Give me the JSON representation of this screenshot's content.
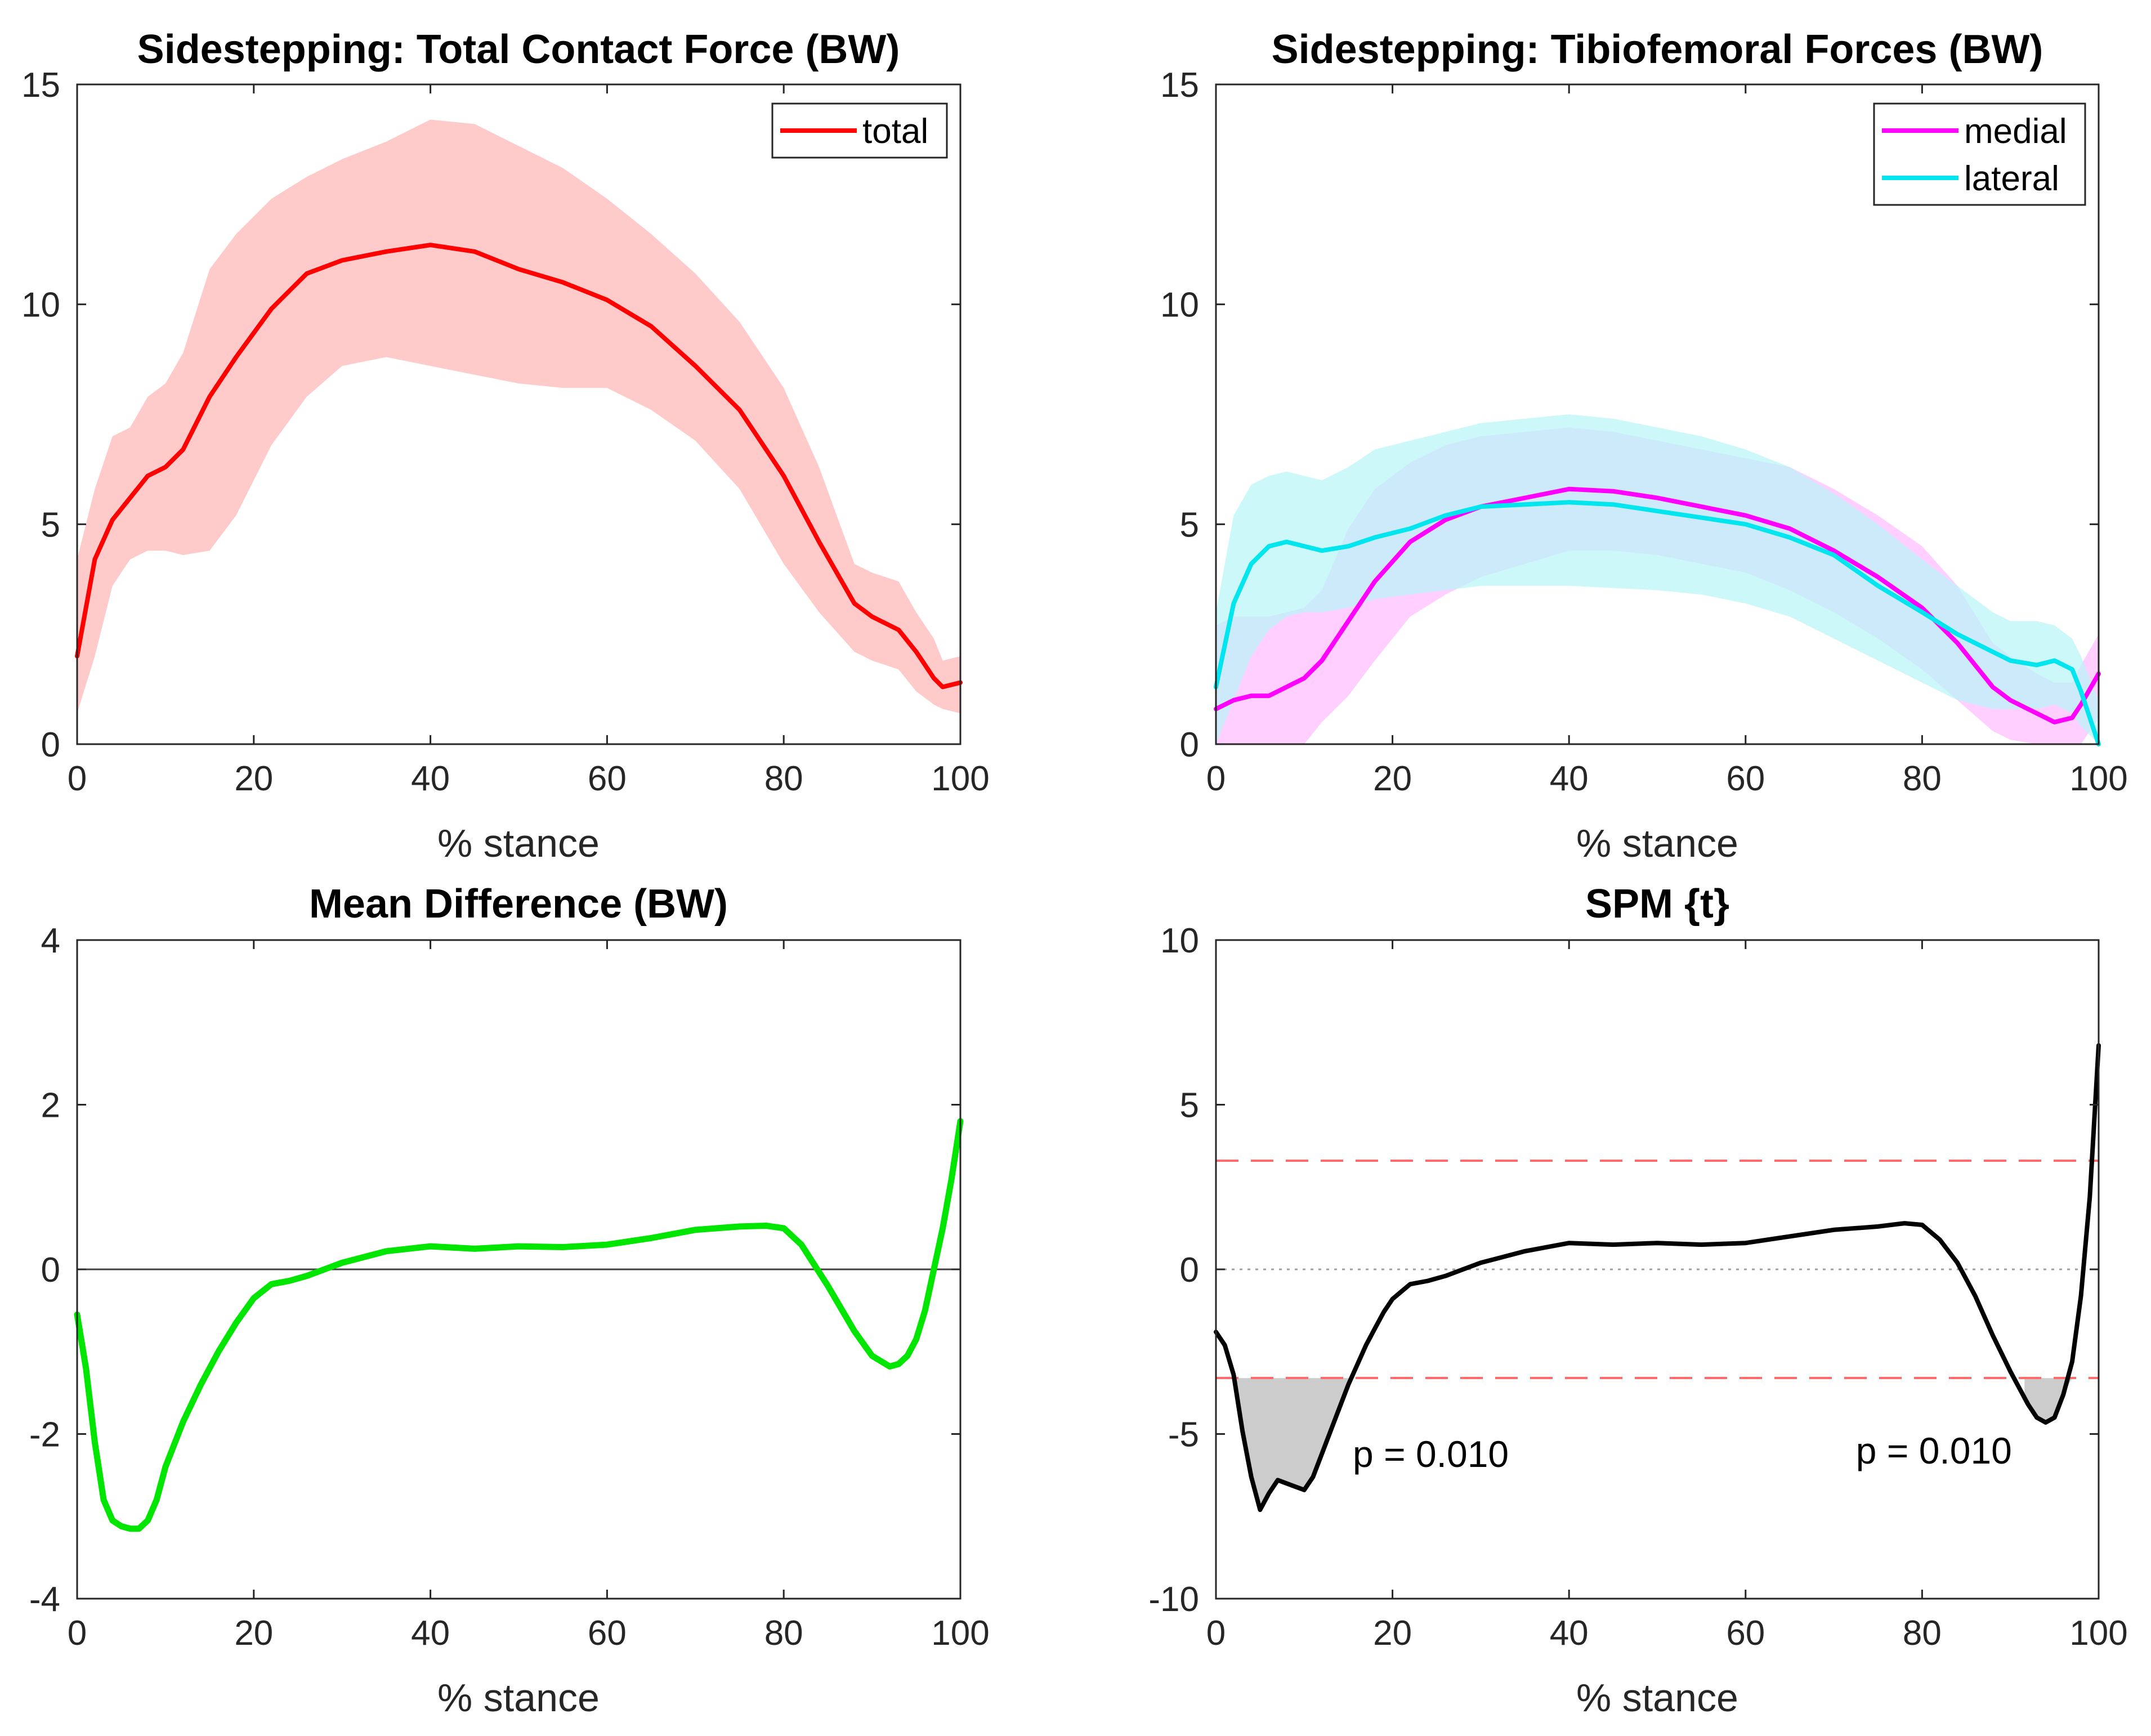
{
  "chart_data": [
    {
      "type": "line",
      "title": "Sidestepping: Total Contact Force (BW)",
      "xlabel": "% stance",
      "ylabel": "",
      "xlim": [
        0,
        100
      ],
      "ylim": [
        0,
        15
      ],
      "xticks": [
        0,
        20,
        40,
        60,
        80,
        100
      ],
      "yticks": [
        0,
        5,
        10,
        15
      ],
      "legend_position": "top-right",
      "series": [
        {
          "name": "total",
          "color": "#ff0000",
          "band_color": "#ffb3b3",
          "x": [
            0,
            2,
            4,
            6,
            8,
            10,
            12,
            15,
            18,
            22,
            26,
            30,
            35,
            40,
            45,
            50,
            55,
            60,
            65,
            70,
            75,
            80,
            84,
            88,
            90,
            93,
            95,
            97,
            98,
            100
          ],
          "values": [
            2.0,
            4.2,
            5.1,
            5.6,
            6.1,
            6.3,
            6.7,
            7.9,
            8.8,
            9.9,
            10.7,
            11.0,
            11.2,
            11.35,
            11.2,
            10.8,
            10.5,
            10.1,
            9.5,
            8.6,
            7.6,
            6.1,
            4.6,
            3.2,
            2.9,
            2.6,
            2.1,
            1.5,
            1.3,
            1.4
          ],
          "band_upper": [
            4.2,
            5.8,
            7.0,
            7.2,
            7.9,
            8.2,
            8.9,
            10.8,
            11.6,
            12.4,
            12.9,
            13.3,
            13.7,
            14.2,
            14.1,
            13.6,
            13.1,
            12.4,
            11.6,
            10.7,
            9.6,
            8.1,
            6.3,
            4.1,
            3.9,
            3.7,
            3.0,
            2.4,
            1.9,
            2.0
          ],
          "band_lower": [
            0.7,
            2.0,
            3.6,
            4.2,
            4.4,
            4.4,
            4.3,
            4.4,
            5.2,
            6.8,
            7.9,
            8.6,
            8.8,
            8.6,
            8.4,
            8.2,
            8.1,
            8.1,
            7.6,
            6.9,
            5.8,
            4.1,
            3.0,
            2.1,
            1.9,
            1.7,
            1.2,
            0.9,
            0.8,
            0.7
          ]
        }
      ]
    },
    {
      "type": "line",
      "title": "Sidestepping: Tibiofemoral Forces (BW)",
      "xlabel": "% stance",
      "ylabel": "",
      "xlim": [
        0,
        100
      ],
      "ylim": [
        0,
        15
      ],
      "xticks": [
        0,
        20,
        40,
        60,
        80,
        100
      ],
      "yticks": [
        0,
        5,
        10,
        15
      ],
      "legend_position": "top-right",
      "series": [
        {
          "name": "medial",
          "color": "#ff00ff",
          "band_color": "#ffbaff",
          "x": [
            0,
            2,
            4,
            6,
            8,
            10,
            12,
            15,
            18,
            22,
            26,
            30,
            35,
            40,
            45,
            50,
            55,
            60,
            65,
            70,
            75,
            80,
            84,
            88,
            90,
            93,
            95,
            97,
            98,
            100
          ],
          "values": [
            0.8,
            1.0,
            1.1,
            1.1,
            1.3,
            1.5,
            1.9,
            2.8,
            3.7,
            4.6,
            5.1,
            5.4,
            5.6,
            5.8,
            5.75,
            5.6,
            5.4,
            5.2,
            4.9,
            4.4,
            3.8,
            3.1,
            2.3,
            1.3,
            1.0,
            0.7,
            0.5,
            0.6,
            0.9,
            1.6
          ],
          "band_upper": [
            2.7,
            2.9,
            2.9,
            2.9,
            3.0,
            3.1,
            3.5,
            4.9,
            5.8,
            6.4,
            6.8,
            7.0,
            7.1,
            7.2,
            7.1,
            6.9,
            6.7,
            6.5,
            6.3,
            5.8,
            5.2,
            4.5,
            3.6,
            2.3,
            2.0,
            1.6,
            1.4,
            1.4,
            1.8,
            2.5
          ],
          "band_lower": [
            0.0,
            0.0,
            0.0,
            0.0,
            0.0,
            0.0,
            0.5,
            1.1,
            1.9,
            2.9,
            3.4,
            3.8,
            4.1,
            4.4,
            4.4,
            4.3,
            4.1,
            3.9,
            3.5,
            3.0,
            2.4,
            1.7,
            1.0,
            0.3,
            0.1,
            0.0,
            0.0,
            0.0,
            0.0,
            0.6
          ]
        },
        {
          "name": "lateral",
          "color": "#00e5ee",
          "band_color": "#b8f5f8",
          "x": [
            0,
            2,
            4,
            6,
            8,
            10,
            12,
            15,
            18,
            22,
            26,
            30,
            35,
            40,
            45,
            50,
            55,
            60,
            65,
            70,
            75,
            80,
            84,
            88,
            90,
            93,
            95,
            97,
            98,
            100
          ],
          "values": [
            1.3,
            3.2,
            4.1,
            4.5,
            4.6,
            4.5,
            4.4,
            4.5,
            4.7,
            4.9,
            5.2,
            5.4,
            5.45,
            5.5,
            5.45,
            5.3,
            5.15,
            5.0,
            4.7,
            4.3,
            3.6,
            3.0,
            2.5,
            2.1,
            1.9,
            1.8,
            1.9,
            1.7,
            1.2,
            0.0
          ],
          "band_upper": [
            3.0,
            5.2,
            5.9,
            6.1,
            6.2,
            6.1,
            6.0,
            6.3,
            6.7,
            6.9,
            7.1,
            7.3,
            7.4,
            7.5,
            7.4,
            7.2,
            7.0,
            6.7,
            6.3,
            5.7,
            5.0,
            4.2,
            3.6,
            3.0,
            2.8,
            2.8,
            2.7,
            2.4,
            2.0,
            1.0
          ],
          "band_lower": [
            0.0,
            1.0,
            2.0,
            2.6,
            2.9,
            3.0,
            3.0,
            3.1,
            3.3,
            3.4,
            3.5,
            3.6,
            3.6,
            3.6,
            3.55,
            3.5,
            3.4,
            3.2,
            2.9,
            2.4,
            1.9,
            1.4,
            1.0,
            0.8,
            0.8,
            0.8,
            0.9,
            0.7,
            0.4,
            0.0
          ]
        }
      ]
    },
    {
      "type": "line",
      "title": "Mean Difference (BW)",
      "xlabel": "% stance",
      "ylabel": "",
      "xlim": [
        0,
        100
      ],
      "ylim": [
        -4,
        4
      ],
      "xticks": [
        0,
        20,
        40,
        60,
        80,
        100
      ],
      "yticks": [
        -4,
        -2,
        0,
        2,
        4
      ],
      "reference_line": 0,
      "series": [
        {
          "name": "mean difference",
          "color": "#00e600",
          "x": [
            0,
            1,
            2,
            3,
            4,
            5,
            6,
            7,
            8,
            9,
            10,
            12,
            14,
            16,
            18,
            20,
            22,
            24,
            26,
            28,
            30,
            35,
            40,
            45,
            50,
            55,
            60,
            65,
            70,
            75,
            78,
            80,
            82,
            85,
            88,
            90,
            92,
            93,
            94,
            95,
            96,
            97,
            98,
            99,
            100
          ],
          "values": [
            -0.55,
            -1.2,
            -2.1,
            -2.8,
            -3.05,
            -3.12,
            -3.15,
            -3.15,
            -3.05,
            -2.8,
            -2.4,
            -1.85,
            -1.4,
            -1.0,
            -0.65,
            -0.35,
            -0.18,
            -0.14,
            -0.08,
            0.0,
            0.08,
            0.22,
            0.28,
            0.25,
            0.28,
            0.27,
            0.3,
            0.38,
            0.48,
            0.52,
            0.53,
            0.5,
            0.3,
            -0.2,
            -0.75,
            -1.05,
            -1.18,
            -1.15,
            -1.05,
            -0.85,
            -0.5,
            0.0,
            0.5,
            1.1,
            1.8
          ]
        }
      ]
    },
    {
      "type": "line",
      "title": "SPM {t}",
      "xlabel": "% stance",
      "ylabel": "",
      "xlim": [
        0,
        100
      ],
      "ylim": [
        -10,
        10
      ],
      "xticks": [
        0,
        20,
        40,
        60,
        80,
        100
      ],
      "yticks": [
        -10,
        -5,
        0,
        5,
        10
      ],
      "threshold": 3.3,
      "threshold_color": "#ff6b6b",
      "zero_line_color": "#a0a0a0",
      "cluster_fill_color": "#cccccc",
      "clusters": [
        {
          "x_start": 2.3,
          "x_end": 15.5,
          "label": "p = 0.010",
          "label_x": 15.5,
          "label_y": -6.0
        },
        {
          "x_start": 91.6,
          "x_end": 97.2,
          "label": "p = 0.010",
          "label_x": 72.5,
          "label_y": -5.9
        }
      ],
      "series": [
        {
          "name": "SPM {t}",
          "color": "#000000",
          "x": [
            0,
            1,
            2,
            3,
            4,
            5,
            6,
            7,
            8,
            9,
            10,
            11,
            12,
            13,
            14,
            15,
            16,
            17,
            18,
            19,
            20,
            22,
            24,
            26,
            28,
            30,
            35,
            40,
            45,
            50,
            55,
            60,
            65,
            70,
            75,
            78,
            80,
            82,
            84,
            86,
            88,
            90,
            91,
            92,
            93,
            94,
            95,
            96,
            97,
            98,
            99,
            100
          ],
          "values": [
            -1.9,
            -2.3,
            -3.2,
            -4.9,
            -6.3,
            -7.3,
            -6.8,
            -6.4,
            -6.5,
            -6.6,
            -6.7,
            -6.3,
            -5.6,
            -4.9,
            -4.2,
            -3.5,
            -2.9,
            -2.3,
            -1.8,
            -1.3,
            -0.9,
            -0.45,
            -0.35,
            -0.2,
            0.0,
            0.2,
            0.55,
            0.8,
            0.75,
            0.8,
            0.75,
            0.8,
            1.0,
            1.2,
            1.3,
            1.4,
            1.35,
            0.9,
            0.2,
            -0.8,
            -2.0,
            -3.1,
            -3.6,
            -4.1,
            -4.5,
            -4.65,
            -4.5,
            -3.8,
            -2.8,
            -0.8,
            2.2,
            6.8
          ]
        }
      ]
    }
  ]
}
